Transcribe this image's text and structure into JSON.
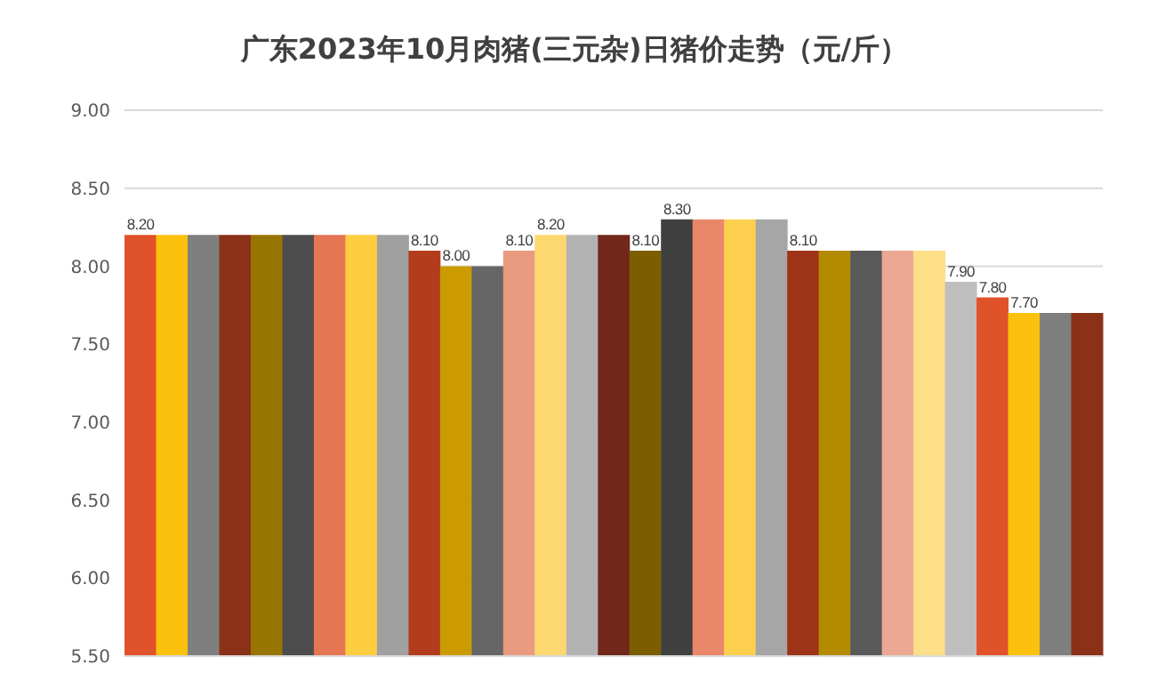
{
  "chart_data": {
    "type": "bar",
    "title": "广东2023年10月肉猪(三元杂)日猪价走势（元/斤）",
    "categories": [
      null,
      null,
      null,
      null,
      null,
      null,
      null,
      null,
      null,
      null,
      null,
      null,
      null,
      null,
      null,
      null,
      null,
      null,
      null,
      null,
      null,
      null,
      null,
      null,
      null,
      null,
      null,
      null,
      null,
      null,
      null
    ],
    "values": [
      8.2,
      8.2,
      8.2,
      8.2,
      8.2,
      8.2,
      8.2,
      8.2,
      8.2,
      8.1,
      8.0,
      8.0,
      8.1,
      8.2,
      8.2,
      8.2,
      8.1,
      8.3,
      8.3,
      8.3,
      8.3,
      8.1,
      8.1,
      8.1,
      8.1,
      8.1,
      7.9,
      7.8,
      7.7,
      7.7,
      7.7
    ],
    "value_labels": [
      "8.20",
      null,
      null,
      null,
      null,
      null,
      null,
      null,
      null,
      "8.10",
      "8.00",
      null,
      "8.10",
      "8.20",
      null,
      null,
      "8.10",
      "8.30",
      null,
      null,
      null,
      "8.10",
      null,
      null,
      null,
      null,
      "7.90",
      "7.80",
      "7.70",
      null,
      null
    ],
    "colors": [
      "#e0522a",
      "#fbc10d",
      "#7f7f7f",
      "#8b3118",
      "#987400",
      "#4d4d4d",
      "#e67553",
      "#fdce3f",
      "#a0a0a0",
      "#b33c1c",
      "#cc9b00",
      "#666666",
      "#ea9a7f",
      "#fdd870",
      "#b3b3b3",
      "#71281a",
      "#7c5e00",
      "#404040",
      "#e8876a",
      "#fcd04e",
      "#a6a6a6",
      "#9e3417",
      "#b38a00",
      "#595959",
      "#eca893",
      "#fddf88",
      "#bfbfbf",
      "#e0522a",
      "#fbc10d",
      "#7f7f7f",
      "#8b3118"
    ],
    "ylim": [
      5.5,
      9.0
    ],
    "yticks": [
      {
        "value": 5.5,
        "label": "5.50"
      },
      {
        "value": 6.0,
        "label": "6.00"
      },
      {
        "value": 6.5,
        "label": "6.50"
      },
      {
        "value": 7.0,
        "label": "7.00"
      },
      {
        "value": 7.5,
        "label": "7.50"
      },
      {
        "value": 8.0,
        "label": "8.00"
      },
      {
        "value": 8.5,
        "label": "8.50"
      },
      {
        "value": 9.0,
        "label": "9.00"
      }
    ],
    "grid": "y",
    "tick_labels": "y"
  }
}
